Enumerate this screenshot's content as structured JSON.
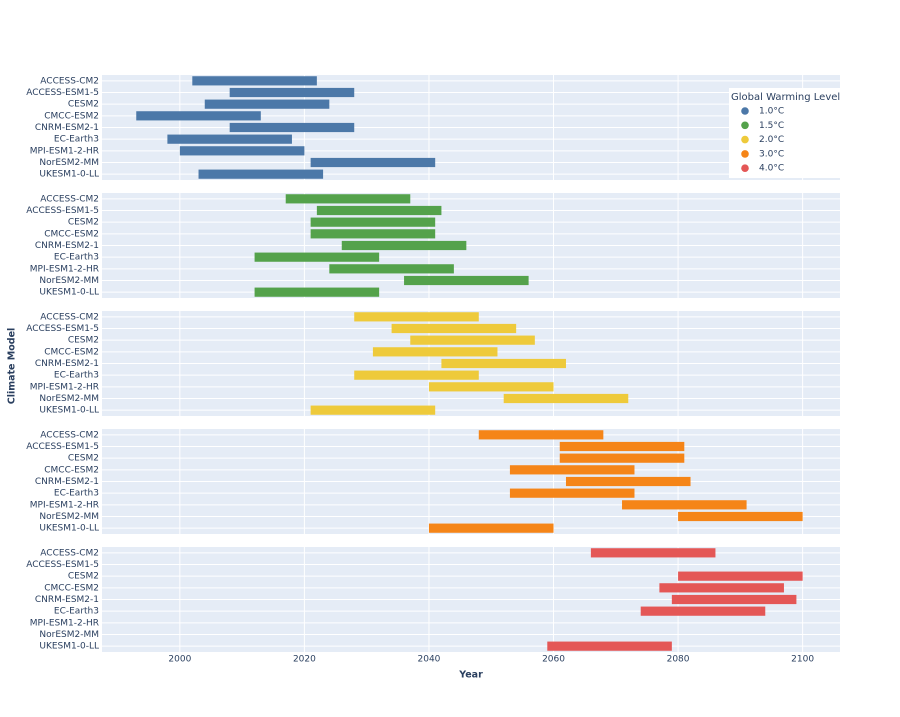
{
  "chart_data": {
    "type": "range-bar",
    "orientation": "horizontal",
    "x_label": "Year",
    "y_label": "Climate Model",
    "legend_title": "Global Warming Level",
    "legend_position": "top-right",
    "categories": [
      "ACCESS-CM2",
      "ACCESS-ESM1-5",
      "CESM2",
      "CMCC-ESM2",
      "CNRM-ESM2-1",
      "EC-Earth3",
      "MPI-ESM1-2-HR",
      "NorESM2-MM",
      "UKESM1-0-LL"
    ],
    "xlim": [
      1987.5,
      2106
    ],
    "xticks": [
      2000,
      2020,
      2040,
      2060,
      2080,
      2100
    ],
    "grid": true,
    "series": [
      {
        "name": "1.0°C",
        "color": "#4c78a8",
        "start": [
          2002,
          2008,
          2004,
          1993,
          2008,
          1998,
          2000,
          2021,
          2003
        ],
        "end": [
          2022,
          2028,
          2024,
          2013,
          2028,
          2018,
          2020,
          2041,
          2023
        ]
      },
      {
        "name": "1.5°C",
        "color": "#54a24b",
        "start": [
          2017,
          2022,
          2021,
          2021,
          2026,
          2012,
          2024,
          2036,
          2012
        ],
        "end": [
          2037,
          2042,
          2041,
          2041,
          2046,
          2032,
          2044,
          2056,
          2032
        ]
      },
      {
        "name": "2.0°C",
        "color": "#eeca3b",
        "start": [
          2028,
          2034,
          2037,
          2031,
          2042,
          2028,
          2040,
          2052,
          2021
        ],
        "end": [
          2048,
          2054,
          2057,
          2051,
          2062,
          2048,
          2060,
          2072,
          2041
        ]
      },
      {
        "name": "3.0°C",
        "color": "#f58518",
        "start": [
          2048,
          2061,
          2061,
          2053,
          2062,
          2053,
          2071,
          2080,
          2040
        ],
        "end": [
          2068,
          2081,
          2081,
          2073,
          2082,
          2073,
          2091,
          2100,
          2060
        ]
      },
      {
        "name": "4.0°C",
        "color": "#e45756",
        "start": [
          2066,
          null,
          2080,
          2077,
          2079,
          2074,
          null,
          null,
          2059
        ],
        "end": [
          2086,
          null,
          2100,
          2097,
          2099,
          2094,
          null,
          null,
          2079
        ]
      }
    ]
  }
}
